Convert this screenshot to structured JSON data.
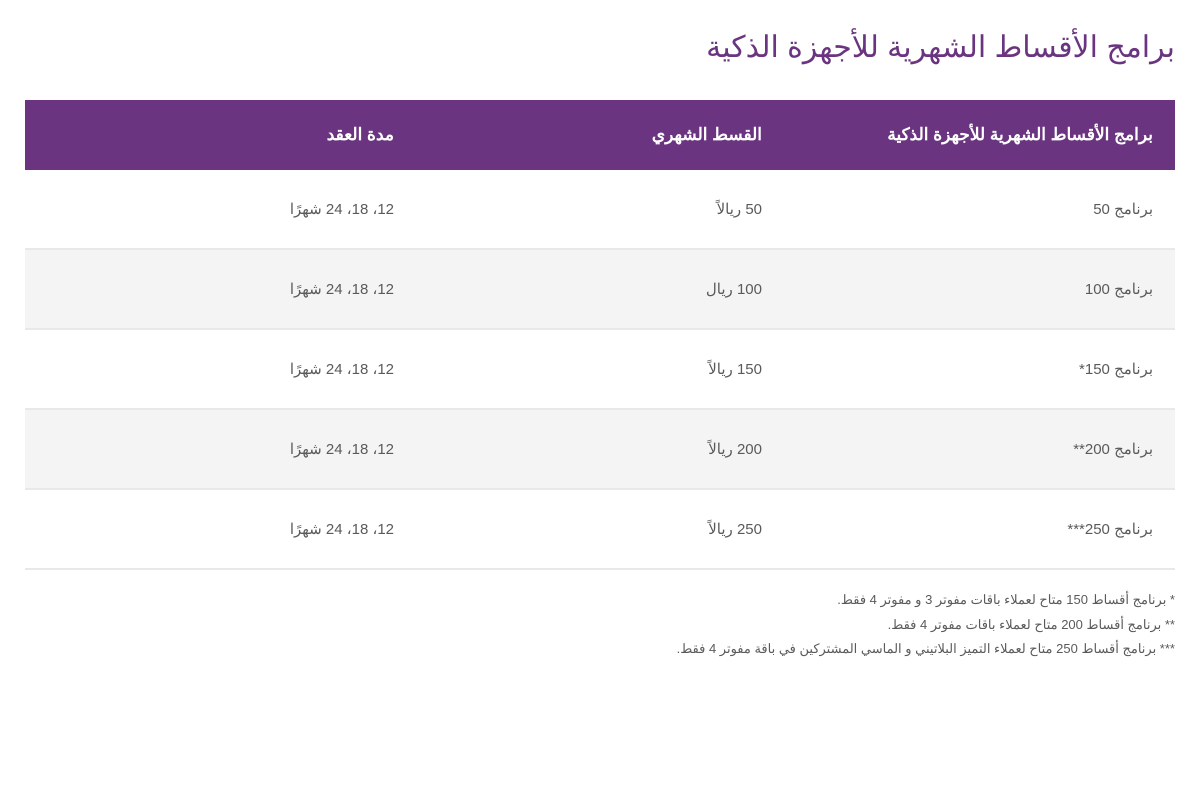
{
  "title": "برامج الأقساط الشهرية للأجهزة الذكية",
  "table": {
    "columns": [
      "برامج الأقساط الشهرية للأجهزة الذكية",
      "القسط الشهري",
      "مدة العقد"
    ],
    "rows": [
      [
        "برنامج 50",
        "50 ريالاً",
        "12، 18، 24 شهرًا"
      ],
      [
        "برنامج 100",
        "100 ريال",
        "12، 18، 24 شهرًا"
      ],
      [
        "برنامج 150*",
        "150 ريالاً",
        "12، 18، 24 شهرًا"
      ],
      [
        "برنامج 200**",
        "200 ريالاً",
        "12، 18، 24 شهرًا"
      ],
      [
        "برنامج 250***",
        "250 ريالاً",
        "12، 18، 24 شهرًا"
      ]
    ]
  },
  "footnotes": [
    "* برنامج أقساط 150 متاح لعملاء باقات مفوتر 3 و مفوتر 4 فقط.",
    "** برنامج أقساط 200 متاح لعملاء باقات مفوتر 4 فقط.",
    "*** برنامج أقساط 250 متاح لعملاء التميز البلاتيني و الماسي المشتركين في باقة مفوتر 4 فقط."
  ],
  "styling": {
    "header_bg": "#6a3480",
    "header_text_color": "#ffffff",
    "title_color": "#6a3480",
    "row_odd_bg": "#ffffff",
    "row_even_bg": "#f4f4f4",
    "row_border_color": "#e8e8e8",
    "cell_text_color": "#5a5a5a",
    "footnote_color": "#5a5a5a",
    "title_fontsize": 30,
    "header_fontsize": 17,
    "cell_fontsize": 15,
    "footnote_fontsize": 13
  }
}
